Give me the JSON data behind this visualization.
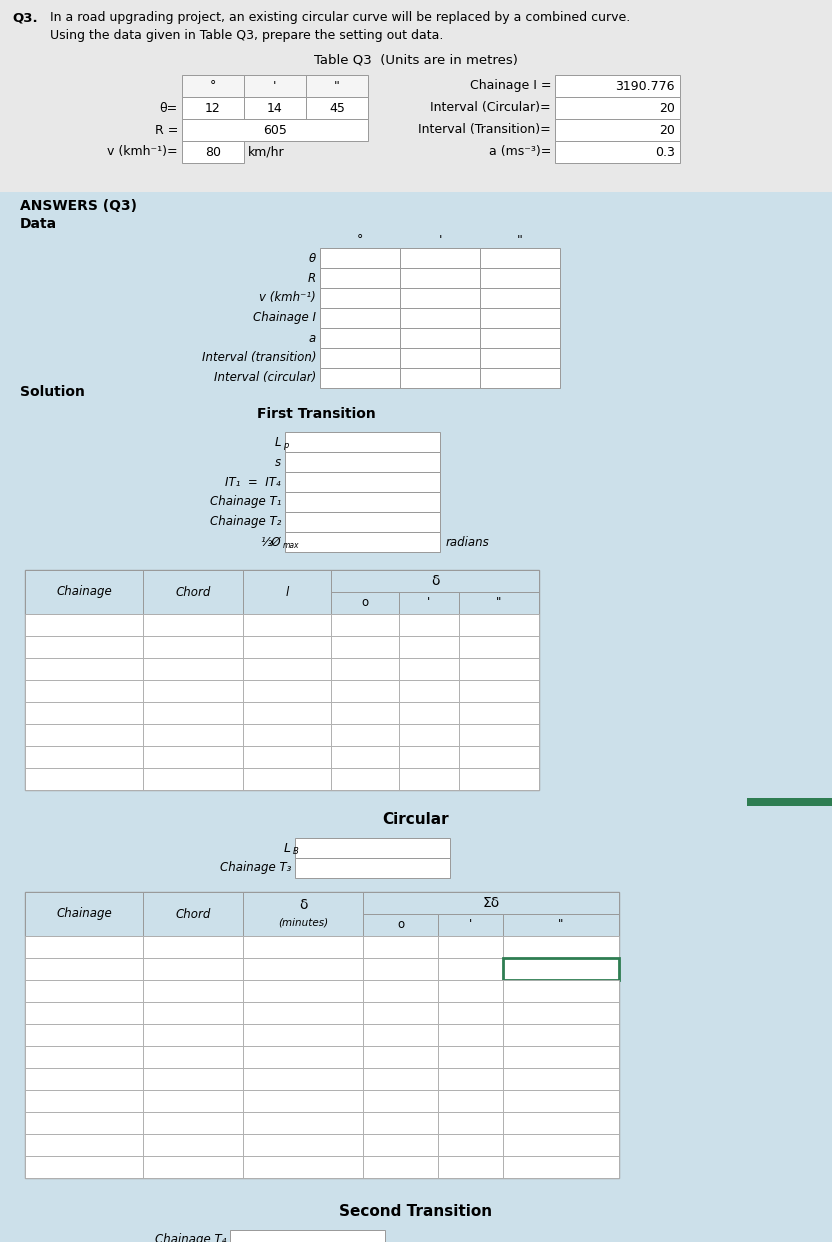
{
  "description_line1": "In a road upgrading project, an existing circular curve will be replaced by a combined curve.",
  "description_line2": "Using the data given in Table Q3, prepare the setting out data.",
  "table_title": "Table Q3  (Units are in metres)",
  "theta_deg": 12,
  "theta_min": 14,
  "theta_sec": 45,
  "R": 605,
  "v": 80,
  "v_unit": "km/hr",
  "chainage_I": 3190.776,
  "interval_circular": 20,
  "interval_transition": 20,
  "a": 0.3,
  "bg_top": "#e8e8e8",
  "bg_bottom": "#cce0ea",
  "white": "#ffffff",
  "header_bg": "#cce0ea",
  "green_border": "#2e7d52",
  "answers_label": "ANSWERS (Q3)",
  "data_label": "Data",
  "solution_label": "Solution",
  "first_transition_label": "First Transition",
  "circular_label": "Circular",
  "second_transition_label": "Second Transition",
  "data_rows": [
    "θ",
    "R",
    "v (kmh⁻¹)",
    "Chainage I",
    "a",
    "Interval (transition)",
    "Interval (circular)"
  ],
  "transition_rows_count": 8,
  "circular_rows_count": 11,
  "second_trans_rows_count": 8,
  "fig_w": 8.32,
  "fig_h": 12.42,
  "dpi": 100
}
